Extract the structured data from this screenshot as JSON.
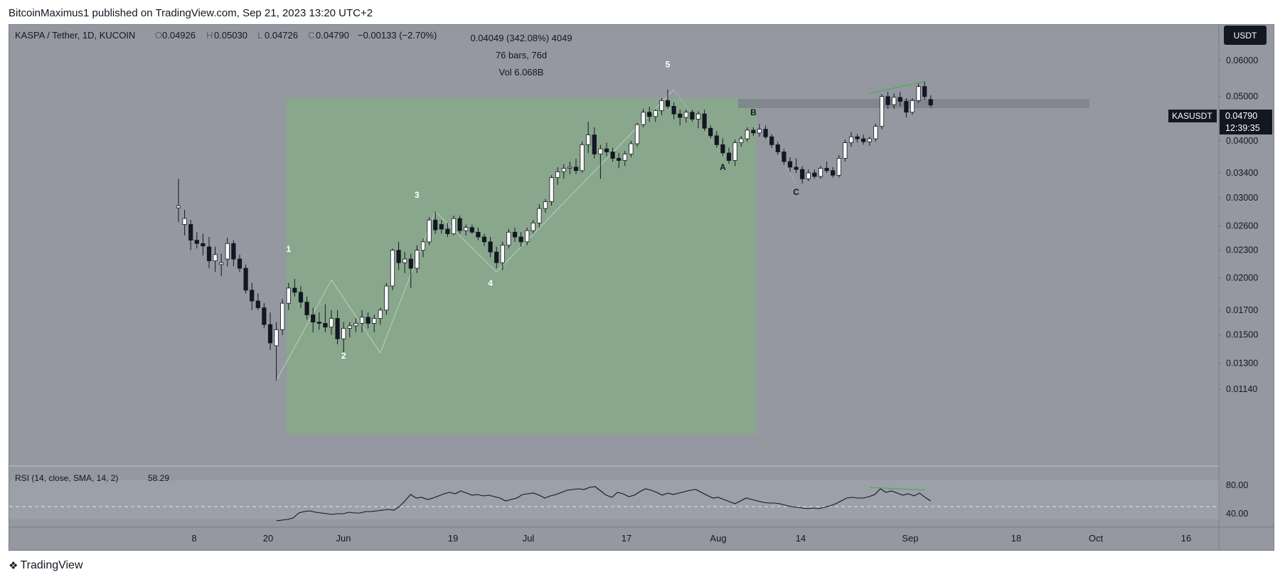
{
  "header": {
    "publisher_line": "BitcoinMaximus1 published on TradingView.com, Sep 21, 2023 13:20 UTC+2"
  },
  "footer": {
    "brand": "TradingView"
  },
  "colors": {
    "background": "#9598a1",
    "rectangle": "#87a889",
    "resistance": "#7f828b",
    "candle_up": "#ffffff",
    "candle_down": "#131722",
    "trendline": "#4caf50"
  },
  "legend": {
    "symbol": "KASPA / Tether, 1D, KUCOIN",
    "o_label": "O",
    "o_value": "0.04926",
    "h_label": "H",
    "h_value": "0.05030",
    "l_label": "L",
    "l_value": "0.04726",
    "c_label": "C",
    "c_value": "0.04790",
    "change": "−0.00133 (−2.70%)"
  },
  "measure": {
    "line1": "0.04049 (342.08%) 4049",
    "line2": "76 bars, 76d",
    "line3": "Vol 6.068B"
  },
  "currency_button": "USDT",
  "price_tag": {
    "symbol": "KASUSDT",
    "price": "0.04790",
    "countdown": "12:39:35"
  },
  "rsi_legend": {
    "label": "RSI (14, close, SMA, 14, 2)",
    "value": "58.29"
  },
  "chart_data": [
    {
      "type": "candlestick",
      "title": "KASPA / Tether, 1D, KUCOIN",
      "y_scale": "log",
      "y_ticks": [
        "0.06000",
        "0.05000",
        "0.04000",
        "0.03400",
        "0.03000",
        "0.02600",
        "0.02300",
        "0.02000",
        "0.01700",
        "0.01500",
        "0.01300",
        "0.01140"
      ],
      "x_ticks": [
        "8",
        "20",
        "Jun",
        "19",
        "Jul",
        "17",
        "Aug",
        "14",
        "Sep",
        "18",
        "Oct",
        "16"
      ],
      "ohlc_approx": [
        [
          0.0285,
          0.033,
          0.0265,
          0.0288
        ],
        [
          0.0262,
          0.0282,
          0.0248,
          0.027
        ],
        [
          0.0262,
          0.0268,
          0.023,
          0.0242
        ],
        [
          0.0242,
          0.0252,
          0.0232,
          0.0238
        ],
        [
          0.0238,
          0.025,
          0.0224,
          0.0235
        ],
        [
          0.0234,
          0.0246,
          0.021,
          0.0218
        ],
        [
          0.0218,
          0.0234,
          0.0206,
          0.0225
        ],
        [
          0.0214,
          0.0226,
          0.0202,
          0.0216
        ],
        [
          0.022,
          0.0245,
          0.0212,
          0.0238
        ],
        [
          0.0238,
          0.0242,
          0.0212,
          0.022
        ],
        [
          0.022,
          0.0225,
          0.0206,
          0.021
        ],
        [
          0.021,
          0.0214,
          0.0185,
          0.0188
        ],
        [
          0.0188,
          0.0195,
          0.017,
          0.0178
        ],
        [
          0.0178,
          0.0185,
          0.017,
          0.0172
        ],
        [
          0.0172,
          0.0176,
          0.0155,
          0.0158
        ],
        [
          0.0158,
          0.0168,
          0.0139,
          0.0144
        ],
        [
          0.0142,
          0.016,
          0.0119,
          0.0154
        ],
        [
          0.0154,
          0.018,
          0.015,
          0.0176
        ],
        [
          0.0176,
          0.0195,
          0.017,
          0.019
        ],
        [
          0.019,
          0.0199,
          0.0182,
          0.0186
        ],
        [
          0.0186,
          0.0192,
          0.0172,
          0.0177
        ],
        [
          0.0177,
          0.0182,
          0.0162,
          0.0166
        ],
        [
          0.0166,
          0.0172,
          0.0152,
          0.016
        ],
        [
          0.016,
          0.0168,
          0.0154,
          0.0159
        ],
        [
          0.0159,
          0.0175,
          0.0152,
          0.0156
        ],
        [
          0.0156,
          0.017,
          0.015,
          0.0163
        ],
        [
          0.0163,
          0.017,
          0.0143,
          0.0147
        ],
        [
          0.0147,
          0.016,
          0.0137,
          0.0155
        ],
        [
          0.0155,
          0.016,
          0.0148,
          0.0157
        ],
        [
          0.0157,
          0.0163,
          0.0152,
          0.0159
        ],
        [
          0.0159,
          0.017,
          0.0152,
          0.0164
        ],
        [
          0.0164,
          0.0168,
          0.0155,
          0.0159
        ],
        [
          0.0159,
          0.0166,
          0.0152,
          0.0163
        ],
        [
          0.0163,
          0.0172,
          0.0158,
          0.017
        ],
        [
          0.017,
          0.0195,
          0.0166,
          0.0192
        ],
        [
          0.0192,
          0.0232,
          0.0188,
          0.023
        ],
        [
          0.023,
          0.024,
          0.0208,
          0.0216
        ],
        [
          0.0216,
          0.0228,
          0.0205,
          0.022
        ],
        [
          0.022,
          0.0226,
          0.019,
          0.021
        ],
        [
          0.021,
          0.0236,
          0.0205,
          0.023
        ],
        [
          0.023,
          0.0244,
          0.0222,
          0.024
        ],
        [
          0.024,
          0.0272,
          0.0236,
          0.0268
        ],
        [
          0.0268,
          0.028,
          0.025,
          0.0255
        ],
        [
          0.0262,
          0.0268,
          0.025,
          0.0256
        ],
        [
          0.0256,
          0.0264,
          0.0246,
          0.025
        ],
        [
          0.025,
          0.0274,
          0.0248,
          0.027
        ],
        [
          0.027,
          0.0274,
          0.025,
          0.0254
        ],
        [
          0.0254,
          0.0262,
          0.0248,
          0.0258
        ],
        [
          0.0258,
          0.0262,
          0.025,
          0.0252
        ],
        [
          0.0252,
          0.0258,
          0.0242,
          0.0246
        ],
        [
          0.0246,
          0.025,
          0.0235,
          0.024
        ],
        [
          0.024,
          0.0246,
          0.0222,
          0.0228
        ],
        [
          0.0228,
          0.0234,
          0.021,
          0.0216
        ],
        [
          0.0216,
          0.024,
          0.0208,
          0.0236
        ],
        [
          0.0236,
          0.0256,
          0.0232,
          0.0252
        ],
        [
          0.0252,
          0.0258,
          0.024,
          0.0246
        ],
        [
          0.0246,
          0.0252,
          0.0234,
          0.024
        ],
        [
          0.024,
          0.0258,
          0.0236,
          0.0254
        ],
        [
          0.0254,
          0.0268,
          0.025,
          0.0264
        ],
        [
          0.0264,
          0.029,
          0.0258,
          0.0284
        ],
        [
          0.0284,
          0.0298,
          0.0278,
          0.0294
        ],
        [
          0.0294,
          0.0336,
          0.0288,
          0.0332
        ],
        [
          0.0332,
          0.035,
          0.032,
          0.0342
        ],
        [
          0.0342,
          0.0355,
          0.033,
          0.0348
        ],
        [
          0.0348,
          0.036,
          0.0338,
          0.035
        ],
        [
          0.035,
          0.0365,
          0.0338,
          0.0344
        ],
        [
          0.0344,
          0.0398,
          0.034,
          0.0392
        ],
        [
          0.0392,
          0.044,
          0.0376,
          0.0412
        ],
        [
          0.0412,
          0.0428,
          0.0366,
          0.0374
        ],
        [
          0.0374,
          0.0392,
          0.033,
          0.0384
        ],
        [
          0.0384,
          0.0396,
          0.037,
          0.0378
        ],
        [
          0.0378,
          0.0386,
          0.036,
          0.0366
        ],
        [
          0.0366,
          0.0376,
          0.0348,
          0.0362
        ],
        [
          0.0362,
          0.038,
          0.0352,
          0.0374
        ],
        [
          0.0374,
          0.04,
          0.0368,
          0.0394
        ],
        [
          0.0394,
          0.0438,
          0.0388,
          0.0434
        ],
        [
          0.0434,
          0.047,
          0.0428,
          0.0462
        ],
        [
          0.0462,
          0.0475,
          0.044,
          0.0452
        ],
        [
          0.0452,
          0.047,
          0.044,
          0.0466
        ],
        [
          0.0466,
          0.0496,
          0.0455,
          0.049
        ],
        [
          0.049,
          0.0518,
          0.047,
          0.0476
        ],
        [
          0.0476,
          0.0486,
          0.0446,
          0.0458
        ],
        [
          0.0458,
          0.0468,
          0.0432,
          0.045
        ],
        [
          0.045,
          0.0468,
          0.0438,
          0.0462
        ],
        [
          0.0462,
          0.0468,
          0.044,
          0.0446
        ],
        [
          0.0446,
          0.0464,
          0.0426,
          0.0458
        ],
        [
          0.0458,
          0.0468,
          0.042,
          0.0426
        ],
        [
          0.0426,
          0.0432,
          0.0404,
          0.041
        ],
        [
          0.041,
          0.042,
          0.0386,
          0.0392
        ],
        [
          0.0392,
          0.0405,
          0.037,
          0.0376
        ],
        [
          0.0376,
          0.0386,
          0.0356,
          0.0362
        ],
        [
          0.0362,
          0.0402,
          0.0352,
          0.0396
        ],
        [
          0.0396,
          0.041,
          0.0388,
          0.0404
        ],
        [
          0.0404,
          0.0428,
          0.0398,
          0.0422
        ],
        [
          0.0422,
          0.0428,
          0.041,
          0.0416
        ],
        [
          0.0416,
          0.0436,
          0.0408,
          0.0424
        ],
        [
          0.0424,
          0.0432,
          0.0404,
          0.0408
        ],
        [
          0.0408,
          0.0414,
          0.0386,
          0.0392
        ],
        [
          0.0392,
          0.0398,
          0.0372,
          0.0378
        ],
        [
          0.0378,
          0.0384,
          0.0354,
          0.036
        ],
        [
          0.036,
          0.0368,
          0.0342,
          0.035
        ],
        [
          0.035,
          0.0366,
          0.034,
          0.0346
        ],
        [
          0.0346,
          0.0352,
          0.0322,
          0.033
        ],
        [
          0.033,
          0.0346,
          0.0326,
          0.034
        ],
        [
          0.034,
          0.0346,
          0.033,
          0.0334
        ],
        [
          0.0334,
          0.0352,
          0.033,
          0.0348
        ],
        [
          0.0348,
          0.036,
          0.034,
          0.0344
        ],
        [
          0.0344,
          0.035,
          0.0332,
          0.0336
        ],
        [
          0.0336,
          0.0372,
          0.0332,
          0.0366
        ],
        [
          0.0366,
          0.0402,
          0.036,
          0.0396
        ],
        [
          0.0396,
          0.0418,
          0.0388,
          0.0408
        ],
        [
          0.0408,
          0.0414,
          0.0396,
          0.0404
        ],
        [
          0.0404,
          0.0412,
          0.0392,
          0.0398
        ],
        [
          0.0398,
          0.0408,
          0.039,
          0.0404
        ],
        [
          0.0404,
          0.0436,
          0.0398,
          0.043
        ],
        [
          0.043,
          0.0506,
          0.0424,
          0.05
        ],
        [
          0.05,
          0.0512,
          0.047,
          0.048
        ],
        [
          0.048,
          0.0508,
          0.047,
          0.0498
        ],
        [
          0.0498,
          0.0512,
          0.0476,
          0.0488
        ],
        [
          0.0488,
          0.0496,
          0.045,
          0.0462
        ],
        [
          0.0462,
          0.0496,
          0.0456,
          0.049
        ],
        [
          0.049,
          0.0534,
          0.0484,
          0.0526
        ],
        [
          0.0526,
          0.054,
          0.0492,
          0.05
        ],
        [
          0.04926,
          0.0503,
          0.04726,
          0.0479
        ]
      ],
      "annotations": {
        "wave_labels": [
          "1",
          "2",
          "3",
          "4",
          "5",
          "A",
          "B",
          "C"
        ],
        "measured_move": "0.04049 (342.08%) 4049",
        "resistance_zone": [
          0.05,
          0.0526
        ]
      }
    },
    {
      "type": "line",
      "title": "RSI (14, close, SMA, 14, 2)",
      "y_ticks": [
        "80.00",
        "40.00"
      ],
      "ylim": [
        30,
        85
      ],
      "band": [
        30,
        70
      ],
      "last_value": 58.29,
      "values": [
        30,
        31,
        32,
        34,
        41,
        43,
        44,
        42,
        41,
        40,
        39,
        40,
        40,
        42,
        41,
        41,
        43,
        43,
        44,
        45,
        46,
        45,
        50,
        58,
        67,
        62,
        63,
        60,
        62,
        65,
        68,
        70,
        68,
        72,
        69,
        66,
        67,
        65,
        66,
        64,
        62,
        58,
        60,
        62,
        67,
        68,
        69,
        66,
        62,
        65,
        67,
        70,
        73,
        74,
        75,
        74,
        77,
        78,
        72,
        66,
        63,
        70,
        68,
        64,
        66,
        71,
        75,
        73,
        70,
        66,
        69,
        67,
        69,
        71,
        73,
        74,
        70,
        66,
        62,
        63,
        60,
        57,
        54,
        58,
        62,
        60,
        58,
        56,
        55,
        55,
        54,
        52,
        50,
        49,
        48,
        47,
        48,
        47,
        49,
        51,
        54,
        58,
        62,
        63,
        62,
        62,
        64,
        67,
        75,
        70,
        72,
        69,
        66,
        68,
        65,
        69,
        63,
        58
      ]
    }
  ]
}
